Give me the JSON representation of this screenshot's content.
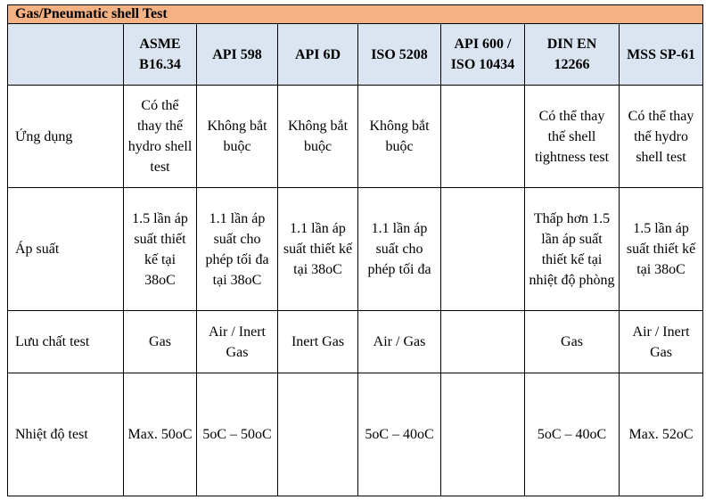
{
  "title": "Gas/Pneumatic shell Test",
  "table": {
    "header": [
      "ASME B16.34",
      "API 598",
      "API 6D",
      "ISO 5208",
      "API 600 / ISO 10434",
      "DIN EN 12266",
      "MSS SP-61"
    ],
    "rows": [
      [
        "Ứng dụng",
        "Có thể thay thế hydro shell test",
        "Không bắt buộc",
        "Không bắt buộc",
        "Không bắt buộc",
        null,
        "Có thể thay thế shell tightness test",
        "Có thể thay thế hydro shell test"
      ],
      [
        "Áp suất",
        "1.5 lần áp suất thiết kế tại 38oC",
        "1.1 lần áp suất cho phép tối đa tại 38oC",
        "1.1 lần áp suất thiết kế tại 38oC",
        "1.1 lần áp suất cho phép tối đa",
        null,
        "Thấp hơn 1.5 lần áp suất thiết kế tại nhiệt độ phòng",
        "1.5 lần áp suất thiết kế tại 38oC"
      ],
      [
        "Lưu chất test",
        "Gas",
        "Air / Inert Gas",
        "Inert Gas",
        "Air / Gas",
        null,
        "Gas",
        "Air / Inert Gas"
      ],
      [
        "Nhiệt độ test",
        "Max. 50oC",
        "5oC – 50oC",
        null,
        "5oC – 40oC",
        null,
        "5oC – 40oC",
        "Max. 52oC"
      ]
    ]
  }
}
